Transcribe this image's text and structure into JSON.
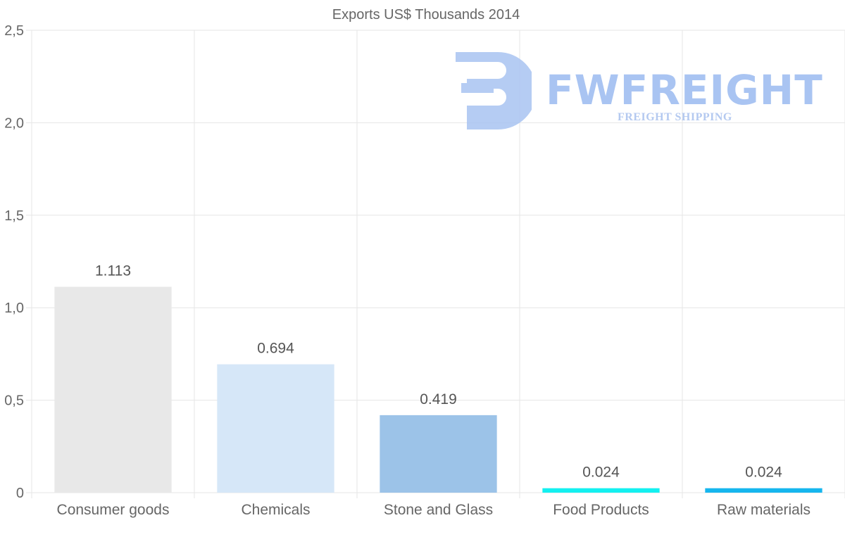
{
  "chart_data": {
    "type": "bar",
    "title": "Exports US$ Thousands 2014",
    "categories": [
      "Consumer goods",
      "Chemicals",
      "Stone and Glass",
      "Food Products",
      "Raw materials"
    ],
    "values": [
      1.113,
      0.694,
      0.419,
      0.024,
      0.024
    ],
    "value_labels": [
      "1.113",
      "0.694",
      "0.419",
      "0.024",
      "0.024"
    ],
    "bar_colors": [
      "#e8e8e8",
      "#d6e7f8",
      "#9cc3e8",
      "#13f0f0",
      "#16b6ee"
    ],
    "xlabel": "",
    "ylabel": "",
    "ylim": [
      0,
      2.5
    ],
    "yticks": [
      0,
      0.5,
      1.0,
      1.5,
      2.0,
      2.5
    ],
    "ytick_labels": [
      "0",
      "0,5",
      "1,0",
      "1,5",
      "2,0",
      "2,5"
    ],
    "grid": true
  },
  "watermark": {
    "name": "FWFREIGHT",
    "tagline": "FREIGHT SHIPPING",
    "color": "#a9c4f2"
  }
}
